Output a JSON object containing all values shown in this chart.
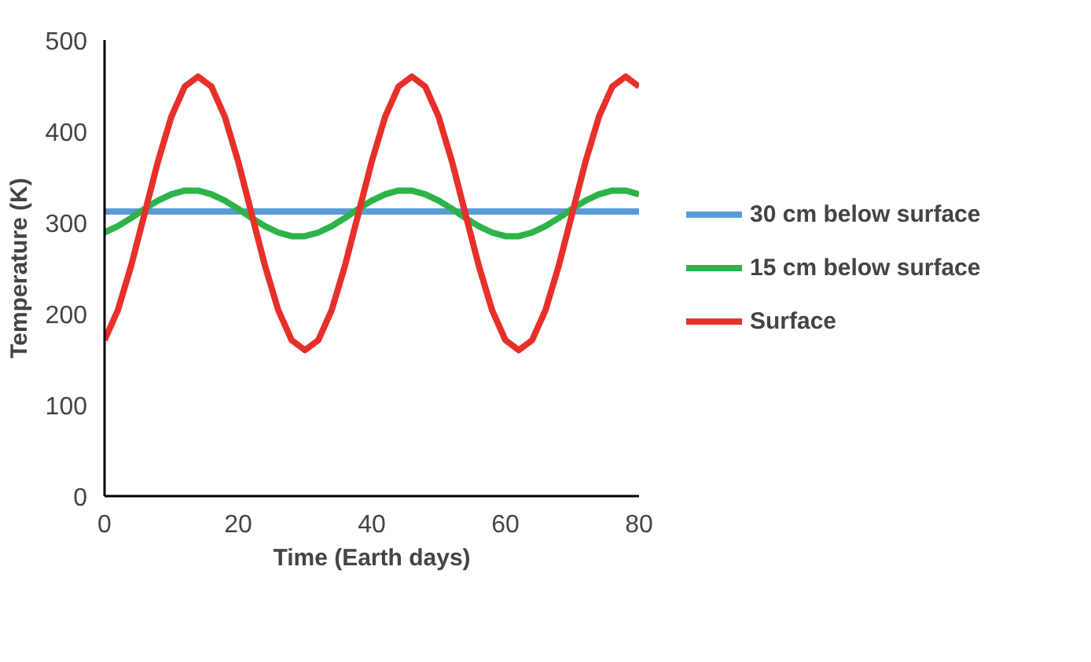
{
  "chart_data": {
    "type": "line",
    "xlabel": "Time (Earth days)",
    "ylabel": "Temperature (K)",
    "x": [
      0,
      2,
      4,
      6,
      8,
      10,
      12,
      14,
      16,
      18,
      20,
      22,
      24,
      26,
      28,
      30,
      32,
      34,
      36,
      38,
      40,
      42,
      44,
      46,
      48,
      50,
      52,
      54,
      56,
      58,
      60,
      62,
      64,
      66,
      68,
      70,
      72,
      74,
      76,
      78,
      80
    ],
    "xlim": [
      0,
      80
    ],
    "xticks": [
      0,
      20,
      40,
      60,
      80
    ],
    "ylim": [
      0,
      500
    ],
    "yticks": [
      0,
      100,
      200,
      300,
      400,
      500
    ],
    "grid": false,
    "legend": "right",
    "marker": "none",
    "line_style": "solid",
    "series": [
      {
        "name": "30 cm below surface",
        "color": "#5b9bd5",
        "values": [
          312,
          312,
          312,
          312,
          312,
          312,
          312,
          312,
          312,
          312,
          312,
          312,
          312,
          312,
          312,
          312,
          312,
          312,
          312,
          312,
          312,
          312,
          312,
          312,
          312,
          312,
          312,
          312,
          312,
          312,
          312,
          312,
          312,
          312,
          312,
          312,
          312,
          312,
          312,
          312,
          312
        ]
      },
      {
        "name": "15 cm below surface",
        "color": "#2db34a",
        "values": [
          289,
          296,
          305,
          315,
          324,
          331,
          335,
          335,
          331,
          324,
          315,
          305,
          296,
          289,
          285,
          285,
          289,
          296,
          305,
          315,
          324,
          331,
          335,
          335,
          331,
          324,
          315,
          305,
          296,
          289,
          285,
          285,
          289,
          296,
          305,
          315,
          324,
          331,
          335,
          335,
          331
        ]
      },
      {
        "name": "Surface",
        "color": "#e8302a",
        "values": [
          171,
          204,
          253,
          310,
          367,
          416,
          449,
          460,
          449,
          416,
          367,
          310,
          253,
          204,
          171,
          160,
          171,
          204,
          253,
          310,
          367,
          416,
          449,
          460,
          449,
          416,
          367,
          310,
          253,
          204,
          171,
          160,
          171,
          204,
          253,
          310,
          367,
          416,
          449,
          460,
          449
        ]
      }
    ]
  }
}
